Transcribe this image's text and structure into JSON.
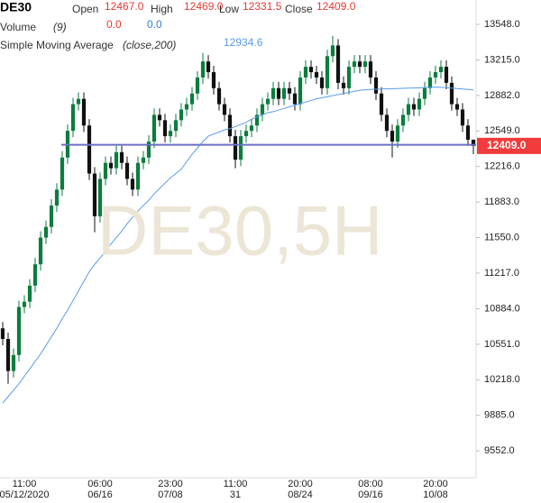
{
  "chart_data": {
    "type": "candlestick",
    "symbol": "DE30",
    "header": {
      "open_label": "Open",
      "open": "12467.0",
      "high_label": "High",
      "high": "12469.0",
      "low_label": "Low",
      "low": "12331.5",
      "close_label": "Close",
      "close": "12409.0"
    },
    "volume": {
      "name": "Volume",
      "params": "(9)",
      "values": [
        "0.0",
        "0.0"
      ],
      "colors": [
        "#e53935",
        "#3a7bd5"
      ]
    },
    "sma": {
      "name": "Simple Moving Average",
      "params": "(close,200)",
      "last": "12934.6",
      "color": "#5b9bea",
      "values": [
        10000,
        10060,
        10120,
        10180,
        10250,
        10320,
        10390,
        10460,
        10540,
        10620,
        10700,
        10790,
        10870,
        10960,
        11050,
        11140,
        11230,
        11300,
        11360,
        11420,
        11490,
        11550,
        11610,
        11680,
        11740,
        11800,
        11850,
        11900,
        11960,
        12010,
        12060,
        12110,
        12150,
        12190,
        12260,
        12330,
        12390,
        12450,
        12500,
        12520,
        12540,
        12560,
        12570,
        12590,
        12610,
        12630,
        12660,
        12680,
        12700,
        12720,
        12730,
        12745,
        12760,
        12775,
        12790,
        12805,
        12820,
        12835,
        12850,
        12860,
        12870,
        12880,
        12890,
        12900,
        12910,
        12920,
        12930,
        12935,
        12938,
        12940,
        12942,
        12944,
        12945,
        12946,
        12948,
        12950,
        12952,
        12954,
        12956,
        12958,
        12960,
        12958,
        12955,
        12950,
        12946,
        12942,
        12938,
        12934.6
      ]
    },
    "watermark": "DE30,5H",
    "up_color": "#0b7d3e",
    "down_color": "#111111",
    "level_line": {
      "value": 12420,
      "color": "#6b6fc4"
    },
    "last_price": {
      "value": 12409,
      "label": "12409.0",
      "color": "#f23c3c"
    },
    "ylim": [
      9300,
      13776
    ],
    "yticks": [
      {
        "value": 13548,
        "label": "13548.0"
      },
      {
        "value": 13215,
        "label": "13215.0"
      },
      {
        "value": 12882,
        "label": "12882.0"
      },
      {
        "value": 12549,
        "label": "12549.0"
      },
      {
        "value": 12216,
        "label": "12216.0"
      },
      {
        "value": 11883,
        "label": "11883.0"
      },
      {
        "value": 11550,
        "label": "11550.0"
      },
      {
        "value": 11217,
        "label": "11217.0"
      },
      {
        "value": 10884,
        "label": "10884.0"
      },
      {
        "value": 10551,
        "label": "10551.0"
      },
      {
        "value": 10218,
        "label": "10218.0"
      },
      {
        "value": 9885,
        "label": "9885.0"
      },
      {
        "value": 9552,
        "label": "9552.0"
      }
    ],
    "categories": [
      null,
      null,
      null,
      null,
      [
        "11:00",
        "05/12/2020"
      ],
      null,
      null,
      null,
      null,
      null,
      null,
      null,
      null,
      null,
      null,
      null,
      null,
      null,
      [
        "06:00",
        "06/16"
      ],
      null,
      null,
      null,
      null,
      null,
      null,
      null,
      null,
      null,
      null,
      null,
      null,
      [
        "23:00",
        "07/08"
      ],
      null,
      null,
      null,
      null,
      null,
      null,
      null,
      null,
      null,
      null,
      null,
      [
        "11:00",
        "31"
      ],
      null,
      null,
      null,
      null,
      null,
      null,
      null,
      null,
      null,
      null,
      null,
      [
        "20:00",
        "08/24"
      ],
      null,
      null,
      null,
      null,
      null,
      null,
      null,
      null,
      null,
      null,
      null,
      null,
      [
        "08:00",
        "09/16"
      ],
      null,
      null,
      null,
      null,
      null,
      null,
      null,
      null,
      null,
      null,
      null,
      [
        "20:00",
        "10/08"
      ],
      null,
      null,
      null,
      null,
      null,
      null,
      null
    ],
    "open": [
      10700,
      10600,
      10300,
      10450,
      10900,
      10950,
      11100,
      11300,
      11550,
      11650,
      11850,
      12000,
      12300,
      12550,
      12800,
      12850,
      12600,
      12150,
      11750,
      12100,
      12250,
      12200,
      12350,
      12250,
      12100,
      12000,
      12250,
      12300,
      12450,
      12700,
      12650,
      12500,
      12550,
      12650,
      12750,
      12800,
      12900,
      13050,
      13200,
      13100,
      12950,
      12800,
      12700,
      12500,
      12280,
      12500,
      12550,
      12600,
      12700,
      12800,
      12850,
      12950,
      12850,
      12950,
      12900,
      12800,
      13050,
      13150,
      13100,
      13050,
      12950,
      13250,
      13350,
      13000,
      12950,
      13150,
      13200,
      13150,
      13200,
      13050,
      12900,
      12700,
      12550,
      12450,
      12600,
      12700,
      12800,
      12750,
      12850,
      12950,
      13050,
      13100,
      13150,
      13000,
      12800,
      12750,
      12600,
      12467
    ],
    "high": [
      10760,
      10660,
      10510,
      10960,
      11010,
      11160,
      11360,
      11610,
      11710,
      11910,
      12060,
      12360,
      12610,
      12860,
      12910,
      12910,
      12660,
      12210,
      12160,
      12310,
      12310,
      12410,
      12410,
      12310,
      12160,
      12310,
      12360,
      12510,
      12760,
      12760,
      12710,
      12610,
      12710,
      12810,
      12860,
      12960,
      13110,
      13280,
      13260,
      13160,
      13010,
      12860,
      12760,
      12560,
      12560,
      12610,
      12660,
      12760,
      12860,
      12910,
      13010,
      13010,
      13010,
      13010,
      12960,
      13110,
      13210,
      13210,
      13160,
      13110,
      13310,
      13440,
      13410,
      13060,
      13210,
      13260,
      13260,
      13260,
      13260,
      13110,
      12960,
      12760,
      12610,
      12660,
      12760,
      12860,
      12860,
      12910,
      13010,
      13110,
      13160,
      13210,
      13210,
      13060,
      12860,
      12810,
      12660,
      12469
    ],
    "low": [
      10540,
      10180,
      10240,
      10390,
      10840,
      10890,
      11040,
      11240,
      11490,
      11590,
      11790,
      11940,
      12240,
      12490,
      12740,
      12540,
      12090,
      11600,
      11690,
      12040,
      12140,
      12140,
      12190,
      12040,
      11940,
      11940,
      12190,
      12240,
      12390,
      12590,
      12440,
      12440,
      12490,
      12590,
      12690,
      12740,
      12840,
      12990,
      13040,
      12890,
      12740,
      12640,
      12440,
      12200,
      12220,
      12440,
      12490,
      12540,
      12640,
      12740,
      12790,
      12790,
      12790,
      12840,
      12740,
      12740,
      12990,
      13040,
      12990,
      12890,
      12890,
      13190,
      12940,
      12890,
      12890,
      13090,
      13090,
      13090,
      12990,
      12840,
      12640,
      12490,
      12300,
      12390,
      12540,
      12640,
      12690,
      12690,
      12790,
      12890,
      12990,
      13040,
      12940,
      12740,
      12690,
      12540,
      12410,
      12331.5
    ],
    "close": [
      10600,
      10300,
      10450,
      10900,
      10950,
      11100,
      11300,
      11550,
      11650,
      11850,
      12000,
      12300,
      12550,
      12800,
      12850,
      12600,
      12150,
      11750,
      12100,
      12250,
      12200,
      12350,
      12250,
      12100,
      12000,
      12250,
      12300,
      12450,
      12700,
      12650,
      12500,
      12550,
      12650,
      12750,
      12800,
      12900,
      13050,
      13200,
      13100,
      12950,
      12800,
      12700,
      12500,
      12280,
      12500,
      12550,
      12600,
      12700,
      12800,
      12850,
      12950,
      12850,
      12950,
      12900,
      12800,
      13050,
      13150,
      13100,
      13050,
      12950,
      13250,
      13350,
      13000,
      12950,
      13150,
      13200,
      13150,
      13200,
      13050,
      12900,
      12700,
      12550,
      12450,
      12600,
      12700,
      12800,
      12750,
      12850,
      12950,
      13050,
      13100,
      13150,
      13000,
      12800,
      12750,
      12600,
      12467,
      12409
    ]
  }
}
